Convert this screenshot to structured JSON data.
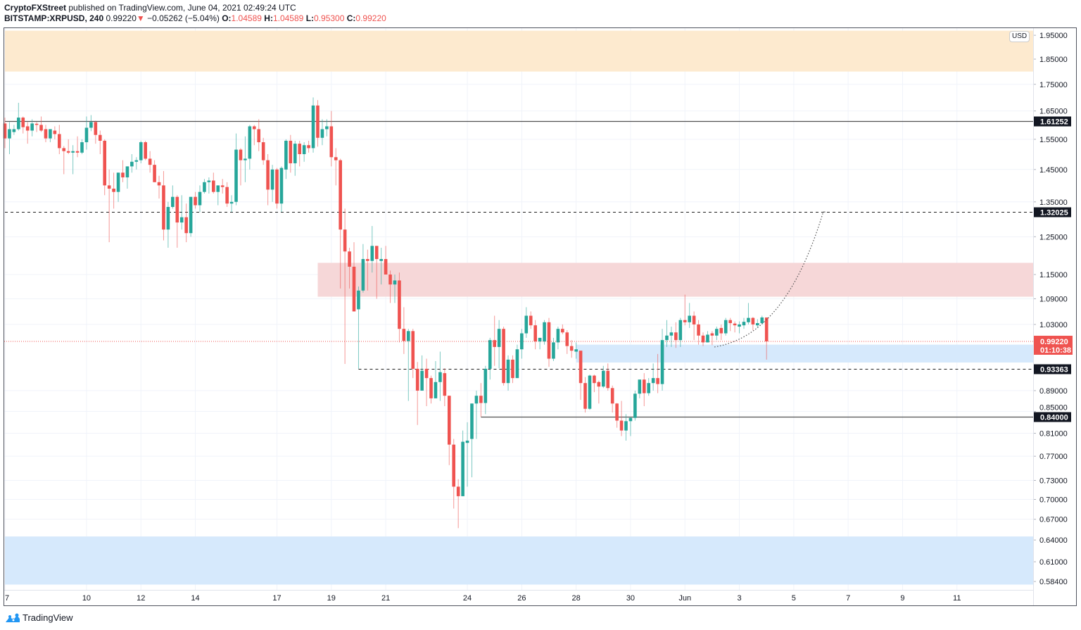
{
  "header": {
    "author": "CryptoFXStreet",
    "published": "published on TradingView.com, June 04, 2021 02:49:24 UTC",
    "symbol": "BITSTAMP:XRPUSD, 240",
    "last": "0.99220",
    "change": "−0.05262 (−5.04%)",
    "o_label": "O:",
    "o": "1.04589",
    "h_label": "H:",
    "h": "1.04589",
    "l_label": "L:",
    "l": "0.95300",
    "c_label": "C:",
    "c": "0.99220"
  },
  "currency": "USD",
  "branding": "TradingView",
  "colors": {
    "up": "#26a69a",
    "down": "#ef5350",
    "supply_zone": "#f5d5d6",
    "demand_zone": "#d4e8fc",
    "top_zone": "#fde9cc"
  },
  "chart_data": {
    "type": "candlestick",
    "scale": "log",
    "interval_hours": 4,
    "start": "2021-05-07T00:00",
    "ylim": [
      0.575,
      1.97
    ],
    "price_ticks": [
      "1.95000",
      "1.85000",
      "1.75000",
      "1.65000",
      "1.55000",
      "1.45000",
      "1.35000",
      "1.25000",
      "1.15000",
      "1.09000",
      "1.03000",
      "0.89000",
      "0.85000",
      "0.81000",
      "0.77000",
      "0.73000",
      "0.70000",
      "0.67000",
      "0.64000",
      "0.61000",
      "0.58400"
    ],
    "date_ticks": [
      {
        "label": "7",
        "date": "2021-05-07"
      },
      {
        "label": "10",
        "date": "2021-05-10"
      },
      {
        "label": "12",
        "date": "2021-05-12"
      },
      {
        "label": "14",
        "date": "2021-05-14"
      },
      {
        "label": "17",
        "date": "2021-05-17"
      },
      {
        "label": "19",
        "date": "2021-05-19"
      },
      {
        "label": "21",
        "date": "2021-05-21"
      },
      {
        "label": "24",
        "date": "2021-05-24"
      },
      {
        "label": "26",
        "date": "2021-05-26"
      },
      {
        "label": "28",
        "date": "2021-05-28"
      },
      {
        "label": "30",
        "date": "2021-05-30"
      },
      {
        "label": "Jun",
        "date": "2021-06-01"
      },
      {
        "label": "3",
        "date": "2021-06-03"
      },
      {
        "label": "5",
        "date": "2021-06-05"
      },
      {
        "label": "7",
        "date": "2021-06-07"
      },
      {
        "label": "9",
        "date": "2021-06-09"
      },
      {
        "label": "11",
        "date": "2021-06-11"
      }
    ],
    "levels": [
      {
        "price": 1.61252,
        "label": "1.61252",
        "style": "solid",
        "from": "2021-05-07"
      },
      {
        "price": 1.32025,
        "label": "1.32025",
        "style": "dashed",
        "from": "2021-05-07"
      },
      {
        "price": 0.93363,
        "label": "0.93363",
        "style": "dashed",
        "from": "2021-05-20T00:00"
      },
      {
        "price": 0.84,
        "label": "0.84000",
        "style": "solid",
        "from": "2021-05-24T12:00"
      }
    ],
    "current": {
      "price": 0.9922,
      "label": "0.99220",
      "countdown": "01:10:38"
    },
    "zones": [
      {
        "kind": "top_zone",
        "high": 1.97,
        "low": 1.8,
        "from": "2021-05-07"
      },
      {
        "kind": "supply_zone",
        "high": 1.18,
        "low": 1.095,
        "from": "2021-05-18T12:00"
      },
      {
        "kind": "demand_zone",
        "high": 0.985,
        "low": 0.947,
        "from": "2021-05-28T00:00"
      },
      {
        "kind": "demand_zone",
        "high": 0.645,
        "low": 0.58,
        "from": "2021-05-07"
      }
    ],
    "projection": {
      "from": {
        "date": "2021-06-02T02:00",
        "price": 0.98
      },
      "to": {
        "date": "2021-06-06T02:00",
        "price": 1.32025
      }
    },
    "candles": [
      [
        1.605,
        1.626,
        1.52,
        1.553
      ],
      [
        1.553,
        1.61,
        1.5,
        1.585
      ],
      [
        1.575,
        1.6,
        1.565,
        1.585
      ],
      [
        1.585,
        1.68,
        1.58,
        1.626
      ],
      [
        1.626,
        1.63,
        1.57,
        1.592
      ],
      [
        1.595,
        1.61,
        1.535,
        1.58
      ],
      [
        1.58,
        1.62,
        1.56,
        1.605
      ],
      [
        1.604,
        1.61,
        1.575,
        1.6
      ],
      [
        1.6,
        1.63,
        1.575,
        1.58
      ],
      [
        1.585,
        1.6,
        1.54,
        1.553
      ],
      [
        1.553,
        1.585,
        1.54,
        1.585
      ],
      [
        1.58,
        1.595,
        1.55,
        1.568
      ],
      [
        1.568,
        1.6,
        1.5,
        1.52
      ],
      [
        1.52,
        1.527,
        1.435,
        1.51
      ],
      [
        1.51,
        1.55,
        1.5,
        1.505
      ],
      [
        1.505,
        1.53,
        1.435,
        1.51
      ],
      [
        1.51,
        1.56,
        1.49,
        1.505
      ],
      [
        1.505,
        1.55,
        1.5,
        1.54
      ],
      [
        1.54,
        1.63,
        1.515,
        1.59
      ],
      [
        1.59,
        1.635,
        1.578,
        1.61
      ],
      [
        1.61,
        1.615,
        1.535,
        1.565
      ],
      [
        1.565,
        1.58,
        1.5,
        1.545
      ],
      [
        1.545,
        1.55,
        1.37,
        1.4
      ],
      [
        1.4,
        1.45,
        1.235,
        1.39
      ],
      [
        1.39,
        1.44,
        1.33,
        1.38
      ],
      [
        1.38,
        1.44,
        1.35,
        1.44
      ],
      [
        1.44,
        1.48,
        1.41,
        1.425
      ],
      [
        1.425,
        1.46,
        1.39,
        1.46
      ],
      [
        1.46,
        1.5,
        1.44,
        1.475
      ],
      [
        1.475,
        1.49,
        1.45,
        1.48
      ],
      [
        1.48,
        1.545,
        1.47,
        1.54
      ],
      [
        1.54,
        1.545,
        1.48,
        1.485
      ],
      [
        1.485,
        1.51,
        1.44,
        1.465
      ],
      [
        1.465,
        1.48,
        1.41,
        1.41
      ],
      [
        1.41,
        1.43,
        1.36,
        1.4
      ],
      [
        1.4,
        1.445,
        1.24,
        1.27
      ],
      [
        1.27,
        1.35,
        1.22,
        1.335
      ],
      [
        1.335,
        1.4,
        1.33,
        1.365
      ],
      [
        1.365,
        1.37,
        1.22,
        1.29
      ],
      [
        1.29,
        1.37,
        1.27,
        1.305
      ],
      [
        1.305,
        1.345,
        1.235,
        1.26
      ],
      [
        1.26,
        1.365,
        1.25,
        1.365
      ],
      [
        1.365,
        1.38,
        1.33,
        1.34
      ],
      [
        1.34,
        1.4,
        1.32,
        1.38
      ],
      [
        1.38,
        1.42,
        1.375,
        1.41
      ],
      [
        1.41,
        1.425,
        1.375,
        1.415
      ],
      [
        1.415,
        1.44,
        1.375,
        1.38
      ],
      [
        1.38,
        1.4,
        1.34,
        1.4
      ],
      [
        1.4,
        1.42,
        1.375,
        1.395
      ],
      [
        1.395,
        1.41,
        1.335,
        1.345
      ],
      [
        1.345,
        1.37,
        1.32,
        1.35
      ],
      [
        1.35,
        1.57,
        1.34,
        1.515
      ],
      [
        1.515,
        1.52,
        1.4,
        1.48
      ],
      [
        1.48,
        1.56,
        1.41,
        1.485
      ],
      [
        1.485,
        1.6,
        1.45,
        1.595
      ],
      [
        1.595,
        1.6,
        1.53,
        1.585
      ],
      [
        1.585,
        1.62,
        1.51,
        1.54
      ],
      [
        1.54,
        1.555,
        1.465,
        1.48
      ],
      [
        1.48,
        1.5,
        1.34,
        1.387
      ],
      [
        1.387,
        1.465,
        1.35,
        1.45
      ],
      [
        1.45,
        1.455,
        1.33,
        1.345
      ],
      [
        1.345,
        1.46,
        1.32,
        1.455
      ],
      [
        1.45,
        1.55,
        1.42,
        1.545
      ],
      [
        1.545,
        1.565,
        1.44,
        1.47
      ],
      [
        1.47,
        1.545,
        1.43,
        1.535
      ],
      [
        1.535,
        1.545,
        1.46,
        1.5
      ],
      [
        1.5,
        1.54,
        1.475,
        1.53
      ],
      [
        1.53,
        1.545,
        1.505,
        1.52
      ],
      [
        1.52,
        1.7,
        1.505,
        1.67
      ],
      [
        1.67,
        1.69,
        1.525,
        1.555
      ],
      [
        1.555,
        1.62,
        1.53,
        1.585
      ],
      [
        1.585,
        1.62,
        1.56,
        1.595
      ],
      [
        1.595,
        1.65,
        1.46,
        1.49
      ],
      [
        1.49,
        1.52,
        1.4,
        1.48
      ],
      [
        1.48,
        1.485,
        1.115,
        1.27
      ],
      [
        1.27,
        1.33,
        0.944,
        1.21
      ],
      [
        1.21,
        1.22,
        1.115,
        1.17
      ],
      [
        1.17,
        1.235,
        1.06,
        1.06
      ],
      [
        1.065,
        1.12,
        0.934,
        1.11
      ],
      [
        1.11,
        1.23,
        1.105,
        1.19
      ],
      [
        1.19,
        1.215,
        1.11,
        1.185
      ],
      [
        1.185,
        1.28,
        1.155,
        1.225
      ],
      [
        1.225,
        1.225,
        1.09,
        1.19
      ],
      [
        1.185,
        1.22,
        1.125,
        1.19
      ],
      [
        1.19,
        1.225,
        1.15,
        1.15
      ],
      [
        1.15,
        1.16,
        1.08,
        1.125
      ],
      [
        1.125,
        1.15,
        1.08,
        1.135
      ],
      [
        1.135,
        1.155,
        0.99,
        1.02
      ],
      [
        1.02,
        1.07,
        0.965,
        0.993
      ],
      [
        0.993,
        1.02,
        0.87,
        1.015
      ],
      [
        1.015,
        1.02,
        0.915,
        0.934
      ],
      [
        0.934,
        0.948,
        0.825,
        0.89
      ],
      [
        0.89,
        0.962,
        0.89,
        0.93
      ],
      [
        0.934,
        0.955,
        0.86,
        0.915
      ],
      [
        0.915,
        0.92,
        0.865,
        0.875
      ],
      [
        0.875,
        0.95,
        0.875,
        0.907
      ],
      [
        0.907,
        0.97,
        0.87,
        0.927
      ],
      [
        0.925,
        0.935,
        0.86,
        0.88
      ],
      [
        0.88,
        0.88,
        0.755,
        0.79
      ],
      [
        0.79,
        0.8,
        0.686,
        0.72
      ],
      [
        0.72,
        0.732,
        0.657,
        0.705
      ],
      [
        0.705,
        0.815,
        0.705,
        0.795
      ],
      [
        0.793,
        0.83,
        0.72,
        0.797
      ],
      [
        0.8,
        0.865,
        0.735,
        0.865
      ],
      [
        0.865,
        0.89,
        0.8,
        0.88
      ],
      [
        0.88,
        0.905,
        0.84,
        0.866
      ],
      [
        0.866,
        0.94,
        0.845,
        0.934
      ],
      [
        0.934,
        1.0,
        0.912,
        0.995
      ],
      [
        0.995,
        1.05,
        0.94,
        0.98
      ],
      [
        0.98,
        1.04,
        0.935,
        1.02
      ],
      [
        1.02,
        1.025,
        0.9,
        0.905
      ],
      [
        0.905,
        0.962,
        0.89,
        0.953
      ],
      [
        0.953,
        0.962,
        0.905,
        0.915
      ],
      [
        0.915,
        0.985,
        0.915,
        0.975
      ],
      [
        0.975,
        1.02,
        0.955,
        1.01
      ],
      [
        1.01,
        1.07,
        1.0,
        1.05
      ],
      [
        1.05,
        1.06,
        1.02,
        1.028
      ],
      [
        1.028,
        1.04,
        0.975,
        0.992
      ],
      [
        0.992,
        1.0,
        0.975,
        1.0
      ],
      [
        0.992,
        1.04,
        0.985,
        1.035
      ],
      [
        1.035,
        1.045,
        0.938,
        0.955
      ],
      [
        0.955,
        1.0,
        0.95,
        0.99
      ],
      [
        0.99,
        1.025,
        0.975,
        1.02
      ],
      [
        1.02,
        1.03,
        1.008,
        1.012
      ],
      [
        1.012,
        1.017,
        0.965,
        0.982
      ],
      [
        0.982,
        0.995,
        0.957,
        0.972
      ],
      [
        0.97,
        0.99,
        0.955,
        0.975
      ],
      [
        0.972,
        0.972,
        0.872,
        0.905
      ],
      [
        0.905,
        0.917,
        0.848,
        0.855
      ],
      [
        0.855,
        0.922,
        0.853,
        0.92
      ],
      [
        0.92,
        0.922,
        0.887,
        0.905
      ],
      [
        0.907,
        0.91,
        0.865,
        0.898
      ],
      [
        0.898,
        0.94,
        0.895,
        0.93
      ],
      [
        0.93,
        0.945,
        0.89,
        0.895
      ],
      [
        0.895,
        0.9,
        0.848,
        0.865
      ],
      [
        0.865,
        0.866,
        0.82,
        0.833
      ],
      [
        0.833,
        0.87,
        0.805,
        0.815
      ],
      [
        0.815,
        0.845,
        0.797,
        0.832
      ],
      [
        0.832,
        0.84,
        0.805,
        0.838
      ],
      [
        0.838,
        0.89,
        0.833,
        0.884
      ],
      [
        0.884,
        0.91,
        0.875,
        0.912
      ],
      [
        0.912,
        0.925,
        0.86,
        0.885
      ],
      [
        0.885,
        0.915,
        0.88,
        0.905
      ],
      [
        0.905,
        0.945,
        0.89,
        0.915
      ],
      [
        0.915,
        0.965,
        0.885,
        0.903
      ],
      [
        0.903,
        1.02,
        0.89,
        0.995
      ],
      [
        0.995,
        1.04,
        0.98,
        1.005
      ],
      [
        1.005,
        1.025,
        0.98,
        1.012
      ],
      [
        1.012,
        1.035,
        0.978,
        0.995
      ],
      [
        0.995,
        1.045,
        0.98,
        1.04
      ],
      [
        1.04,
        1.1,
        1.028,
        1.035
      ],
      [
        1.035,
        1.08,
        1.022,
        1.05
      ],
      [
        1.05,
        1.06,
        0.995,
        1.03
      ],
      [
        1.03,
        1.04,
        0.985,
        1.005
      ],
      [
        1.005,
        1.012,
        0.982,
        0.99
      ],
      [
        0.99,
        1.015,
        0.99,
        1.007
      ],
      [
        1.01,
        1.015,
        0.984,
        1.005
      ],
      [
        1.005,
        1.025,
        0.995,
        1.02
      ],
      [
        1.022,
        1.03,
        0.995,
        1.01
      ],
      [
        1.01,
        1.045,
        1.005,
        1.04
      ],
      [
        1.04,
        1.045,
        1.015,
        1.033
      ],
      [
        1.032,
        1.037,
        1.012,
        1.028
      ],
      [
        1.025,
        1.037,
        1.01,
        1.03
      ],
      [
        1.028,
        1.045,
        1.02,
        1.036
      ],
      [
        1.035,
        1.08,
        1.03,
        1.045
      ],
      [
        1.045,
        1.047,
        1.017,
        1.03
      ],
      [
        1.028,
        1.042,
        1.022,
        1.033
      ],
      [
        1.033,
        1.05,
        1.03,
        1.046
      ],
      [
        1.04589,
        1.04589,
        0.953,
        0.9922
      ]
    ]
  }
}
